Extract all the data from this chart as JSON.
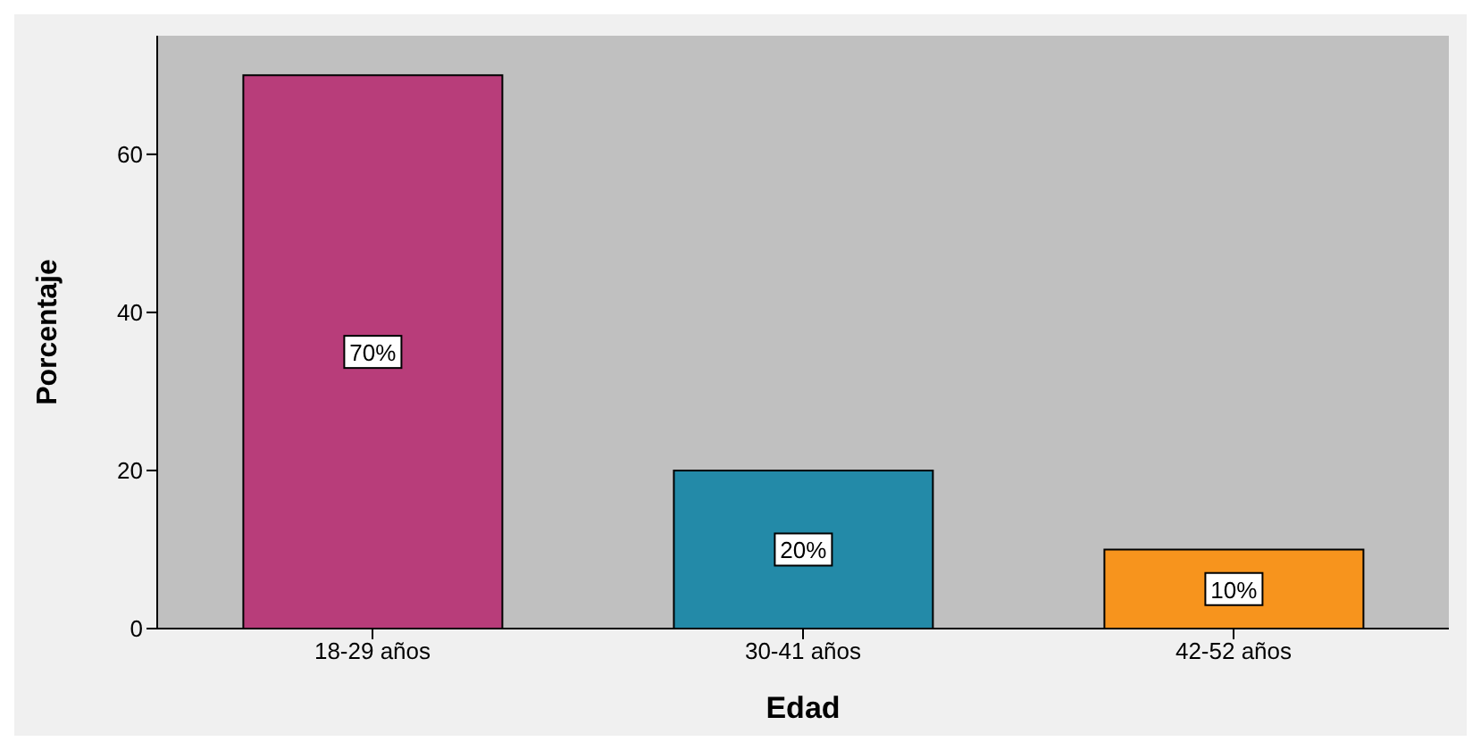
{
  "chart_data": {
    "type": "bar",
    "xlabel": "Edad",
    "ylabel": "Porcentaje",
    "categories": [
      "18-29 años",
      "30-41 años",
      "42-52 años"
    ],
    "values": [
      70,
      20,
      10
    ],
    "colors": [
      "#b83d7a",
      "#238aa8",
      "#f7941d"
    ],
    "value_labels": [
      "70%",
      "20%",
      "10%"
    ],
    "ylim": [
      0,
      75
    ],
    "yticks": [
      0,
      20,
      40,
      60
    ],
    "grid": false
  }
}
